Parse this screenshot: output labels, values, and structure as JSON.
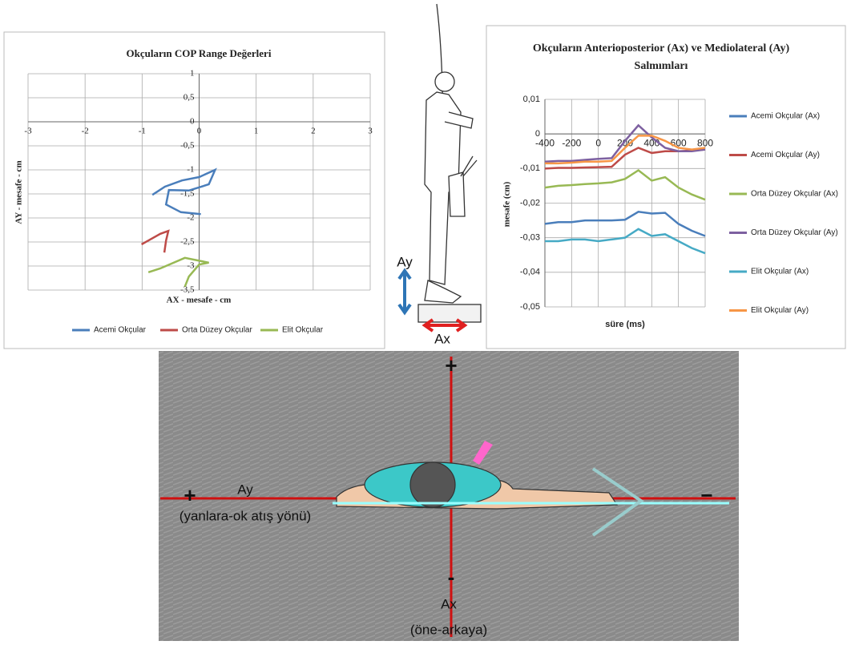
{
  "chart_data": [
    {
      "type": "line",
      "title": "Okçuların  COP Range Değerleri",
      "x_label": "AX - mesafe - cm",
      "y_label": "AY - mesafe - cm",
      "xlim": [
        -3,
        3
      ],
      "xticks": [
        -3,
        -2,
        -1,
        0,
        1,
        2,
        3
      ],
      "ylim": [
        -3.5,
        1
      ],
      "yticks": [
        1,
        {
          "value": 0.5,
          "label": "0,5"
        },
        0,
        {
          "value": -0.5,
          "label": "-0,5"
        },
        -1,
        {
          "value": -1.5,
          "label": "-1,5"
        },
        -2,
        {
          "value": -2.5,
          "label": "-2,5"
        },
        -3,
        {
          "value": -3.5,
          "label": "-3,5"
        }
      ],
      "grid": true,
      "legend": "bottom",
      "series": [
        {
          "name": "Acemi Okçular",
          "color": "#4a7ebb",
          "x": [
            -0.82,
            -0.6,
            -0.3,
            0,
            0.28,
            0.17,
            -0.18,
            -0.53,
            -0.58,
            -0.32,
            0.03
          ],
          "values": [
            -1.52,
            -1.35,
            -1.22,
            -1.15,
            -1.0,
            -1.3,
            -1.43,
            -1.42,
            -1.72,
            -1.88,
            -1.92
          ]
        },
        {
          "name": "Orta Düzey Okçular",
          "color": "#be4b48",
          "x": [
            -1.01,
            -0.89,
            -0.68,
            -0.54,
            -0.58,
            -0.61
          ],
          "values": [
            -2.55,
            -2.47,
            -2.33,
            -2.27,
            -2.47,
            -2.72
          ]
        },
        {
          "name": "Elit Okçular",
          "color": "#98b954",
          "x": [
            -0.89,
            -0.68,
            -0.25,
            0.17,
            0,
            -0.18,
            -0.25
          ],
          "values": [
            -3.13,
            -3.05,
            -2.83,
            -2.93,
            -2.97,
            -3.22,
            -3.43
          ]
        }
      ]
    },
    {
      "type": "line",
      "title": "Okçuların Anterioposterior (Ax) ve Mediolateral (Ay) Salmımları",
      "x_label": "süre (ms)",
      "y_label": "mesafe (cm)",
      "xlim": [
        -400,
        800
      ],
      "xticks": [
        -400,
        -200,
        0,
        200,
        400,
        600,
        800
      ],
      "ylim": [
        -0.05,
        0.01
      ],
      "yticks": [
        {
          "value": 0.01,
          "label": "0,01"
        },
        0,
        {
          "value": -0.01,
          "label": "-0,01"
        },
        {
          "value": -0.02,
          "label": "-0,02"
        },
        {
          "value": -0.03,
          "label": "-0,03"
        },
        {
          "value": -0.04,
          "label": "-0,04"
        },
        {
          "value": -0.05,
          "label": "-0,05"
        }
      ],
      "grid": true,
      "legend": "right",
      "x": [
        -400,
        -300,
        -200,
        -100,
        0,
        100,
        200,
        300,
        400,
        500,
        600,
        700,
        800
      ],
      "series": [
        {
          "name": "Acemi Okçular (Ax)",
          "color": "#4a7ebb",
          "values": [
            -0.026,
            -0.0255,
            -0.0255,
            -0.025,
            -0.025,
            -0.025,
            -0.0248,
            -0.0225,
            -0.023,
            -0.0228,
            -0.026,
            -0.028,
            -0.0295
          ]
        },
        {
          "name": "Acemi Okçular (Ay)",
          "color": "#be4b48",
          "values": [
            -0.01,
            -0.0098,
            -0.0098,
            -0.0097,
            -0.0096,
            -0.0095,
            -0.006,
            -0.004,
            -0.0055,
            -0.005,
            -0.005,
            -0.0048,
            -0.0045
          ]
        },
        {
          "name": "Orta Düzey Okçular (Ax)",
          "color": "#98b954",
          "values": [
            -0.0155,
            -0.015,
            -0.0148,
            -0.0145,
            -0.0143,
            -0.014,
            -0.013,
            -0.0105,
            -0.0135,
            -0.0125,
            -0.0155,
            -0.0175,
            -0.019
          ]
        },
        {
          "name": "Orta Düzey Okçular (Ay)",
          "color": "#7d60a0",
          "values": [
            -0.008,
            -0.0078,
            -0.0078,
            -0.0075,
            -0.0072,
            -0.007,
            -0.002,
            0.0025,
            -0.001,
            -0.004,
            -0.005,
            -0.005,
            -0.0045
          ]
        },
        {
          "name": "Elit Okçular (Ax)",
          "color": "#46aac5",
          "values": [
            -0.031,
            -0.031,
            -0.0305,
            -0.0305,
            -0.031,
            -0.0305,
            -0.03,
            -0.0275,
            -0.0295,
            -0.029,
            -0.031,
            -0.033,
            -0.0345
          ]
        },
        {
          "name": "Elit  Okçular (Ay)",
          "color": "#f79646",
          "values": [
            -0.0085,
            -0.0085,
            -0.0083,
            -0.008,
            -0.008,
            -0.0078,
            -0.004,
            -0.0005,
            -0.0005,
            -0.002,
            -0.004,
            -0.0045,
            -0.004
          ]
        }
      ]
    }
  ],
  "standing_archer": {
    "ay_label": "Ay",
    "ax_label": "Ax"
  },
  "top_view": {
    "plus_top": "+",
    "plus_left": "+",
    "minus_right": "−",
    "minus_bottom": "-",
    "ay_label": "Ay",
    "ay_note": "(yanlara-ok  atış yönü)",
    "ax_label": "Ax",
    "ax_note": "(öne-arkaya)"
  }
}
